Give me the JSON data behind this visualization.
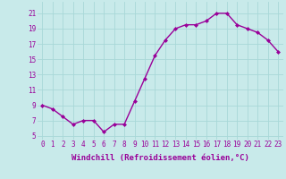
{
  "x": [
    0,
    1,
    2,
    3,
    4,
    5,
    6,
    7,
    8,
    9,
    10,
    11,
    12,
    13,
    14,
    15,
    16,
    17,
    18,
    19,
    20,
    21,
    22,
    23
  ],
  "y": [
    9,
    8.5,
    7.5,
    6.5,
    7,
    7,
    5.5,
    6.5,
    6.5,
    9.5,
    12.5,
    15.5,
    17.5,
    19,
    19.5,
    19.5,
    20,
    21,
    21,
    19.5,
    19,
    18.5,
    17.5,
    16
  ],
  "line_color": "#990099",
  "marker": "D",
  "markersize": 2,
  "linewidth": 1.0,
  "bg_color": "#c8eaea",
  "grid_color": "#a8d8d8",
  "xlabel": "Windchill (Refroidissement éolien,°C)",
  "xlabel_fontsize": 6.5,
  "ytick_labels": [
    "5",
    "7",
    "9",
    "11",
    "13",
    "15",
    "17",
    "19",
    "21"
  ],
  "yticks": [
    5,
    7,
    9,
    11,
    13,
    15,
    17,
    19,
    21
  ],
  "xticks": [
    0,
    1,
    2,
    3,
    4,
    5,
    6,
    7,
    8,
    9,
    10,
    11,
    12,
    13,
    14,
    15,
    16,
    17,
    18,
    19,
    20,
    21,
    22,
    23
  ],
  "xlim": [
    -0.5,
    23.5
  ],
  "ylim": [
    4.5,
    22.5
  ],
  "tick_fontsize": 5.5,
  "tick_color": "#990099",
  "label_color": "#990099"
}
